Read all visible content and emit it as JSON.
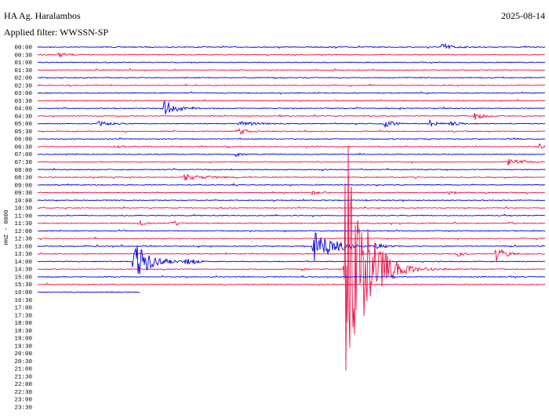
{
  "header": {
    "station": "HA Ag. Haralambos",
    "date": "2025-08-14",
    "filter": "Applied filter: WWSSN-SP"
  },
  "axis_label": "HHZ - 0000",
  "time_labels": [
    "00:00",
    "00:30",
    "01:00",
    "01:30",
    "02:00",
    "02:30",
    "03:00",
    "03:30",
    "04:00",
    "04:30",
    "05:00",
    "05:30",
    "06:00",
    "06:30",
    "07:00",
    "07:30",
    "08:00",
    "08:30",
    "09:00",
    "09:30",
    "10:00",
    "10:30",
    "11:00",
    "11:30",
    "12:00",
    "12:30",
    "13:00",
    "13:30",
    "14:00",
    "14:30",
    "15:00",
    "15:30",
    "16:00",
    "16:30",
    "17:00",
    "17:30",
    "18:00",
    "18:30",
    "19:00",
    "19:30",
    "20:00",
    "20:30",
    "21:00",
    "21:30",
    "22:00",
    "22:30",
    "23:00",
    "23:30"
  ]
}
